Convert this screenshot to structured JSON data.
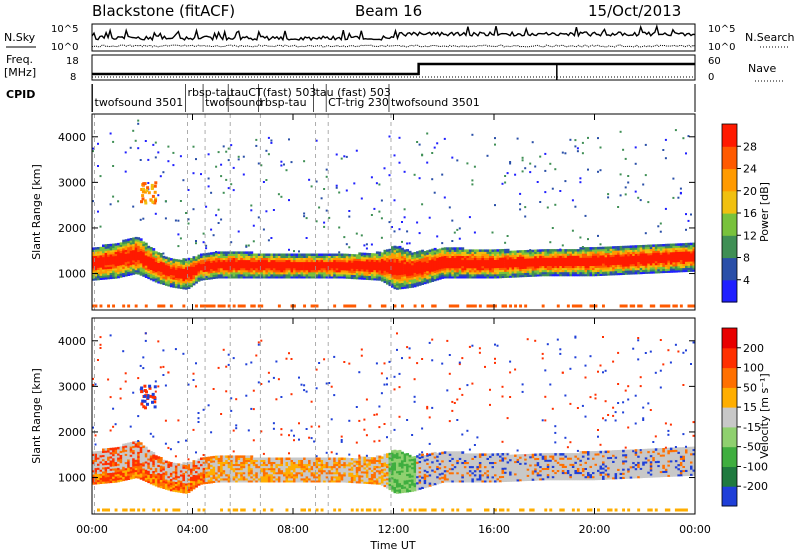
{
  "header": {
    "station": "Blackstone (fitACF)",
    "beam": "Beam 16",
    "date": "15/Oct/2013"
  },
  "top_panels": {
    "nsky_label": "N.Sky",
    "nsearch_label": "N.Search",
    "noise_ticks_left": [
      "10^5",
      "10^0"
    ],
    "noise_ticks_right": [
      "10^5",
      "10^0"
    ],
    "freq_label_1": "Freq.",
    "freq_label_2": "[MHz]",
    "freq_ticks": [
      "18",
      "8"
    ],
    "nave_label": "Nave",
    "nave_ticks": [
      "60",
      "0"
    ],
    "cpid_label": "CPID"
  },
  "cpid_segments": [
    {
      "text": "twofsound  3501",
      "hour": 0.1,
      "row": 2
    },
    {
      "text": "rbsp-tau",
      "hour": 3.8,
      "row": 1
    },
    {
      "text": "twofsound",
      "hour": 4.5,
      "row": 2
    },
    {
      "text": "tauCT(fast) 503",
      "hour": 5.5,
      "row": 1
    },
    {
      "text": "rbsp-tau",
      "hour": 6.7,
      "row": 2
    },
    {
      "text": "tau (fast) 503",
      "hour": 8.9,
      "row": 1
    },
    {
      "text": "CT-trig 230",
      "hour": 9.4,
      "row": 2
    },
    {
      "text": "twofsound 3501",
      "hour": 11.9,
      "row": 2
    }
  ],
  "chart_data": [
    {
      "type": "heatmap",
      "parameter": "Power",
      "ylabel": "Slant Range [km]",
      "ylim": [
        200,
        4500
      ],
      "yticks": [
        "1000",
        "2000",
        "3000",
        "4000"
      ],
      "colorbar_label": "Power [dB]",
      "colorbar_ticks": [
        "4",
        "8",
        "12",
        "16",
        "20",
        "24",
        "28"
      ],
      "colors": [
        "#1f1fff",
        "#2a4fa8",
        "#3f8f55",
        "#78c23c",
        "#f0c010",
        "#ff9a00",
        "#ff5a00",
        "#ff1a00"
      ],
      "profile": {
        "hours": [
          0,
          1,
          1.8,
          2.6,
          3.2,
          3.8,
          4.3,
          5,
          6,
          8,
          10,
          11.5,
          12.1,
          12.8,
          14,
          16,
          18,
          20,
          22,
          24
        ],
        "lower_km": [
          850,
          900,
          1000,
          800,
          700,
          650,
          850,
          900,
          900,
          900,
          900,
          850,
          650,
          700,
          900,
          900,
          950,
          950,
          1000,
          1050
        ],
        "upper_km": [
          1550,
          1650,
          1800,
          1450,
          1300,
          1300,
          1400,
          1450,
          1450,
          1400,
          1400,
          1450,
          1600,
          1450,
          1550,
          1500,
          1500,
          1550,
          1600,
          1650
        ]
      }
    },
    {
      "type": "heatmap",
      "parameter": "Velocity",
      "ylabel": "Slant Range [km]",
      "ylim": [
        200,
        4500
      ],
      "yticks": [
        "1000",
        "2000",
        "3000",
        "4000"
      ],
      "colorbar_label": "Velocity [m s⁻¹]",
      "colorbar_ticks": [
        "200",
        "100",
        "50",
        "15",
        "-15",
        "-50",
        "-100",
        "-200"
      ],
      "colors": [
        "#1f3fd8",
        "#1f7a3f",
        "#3fae3f",
        "#8fd06f",
        "#c8c8c8",
        "#ffae00",
        "#ff7000",
        "#ff3000",
        "#e80000"
      ],
      "xlabel": "Time UT",
      "xticks": [
        "00:00",
        "04:00",
        "08:00",
        "12:00",
        "16:00",
        "20:00",
        "00:00"
      ]
    }
  ]
}
